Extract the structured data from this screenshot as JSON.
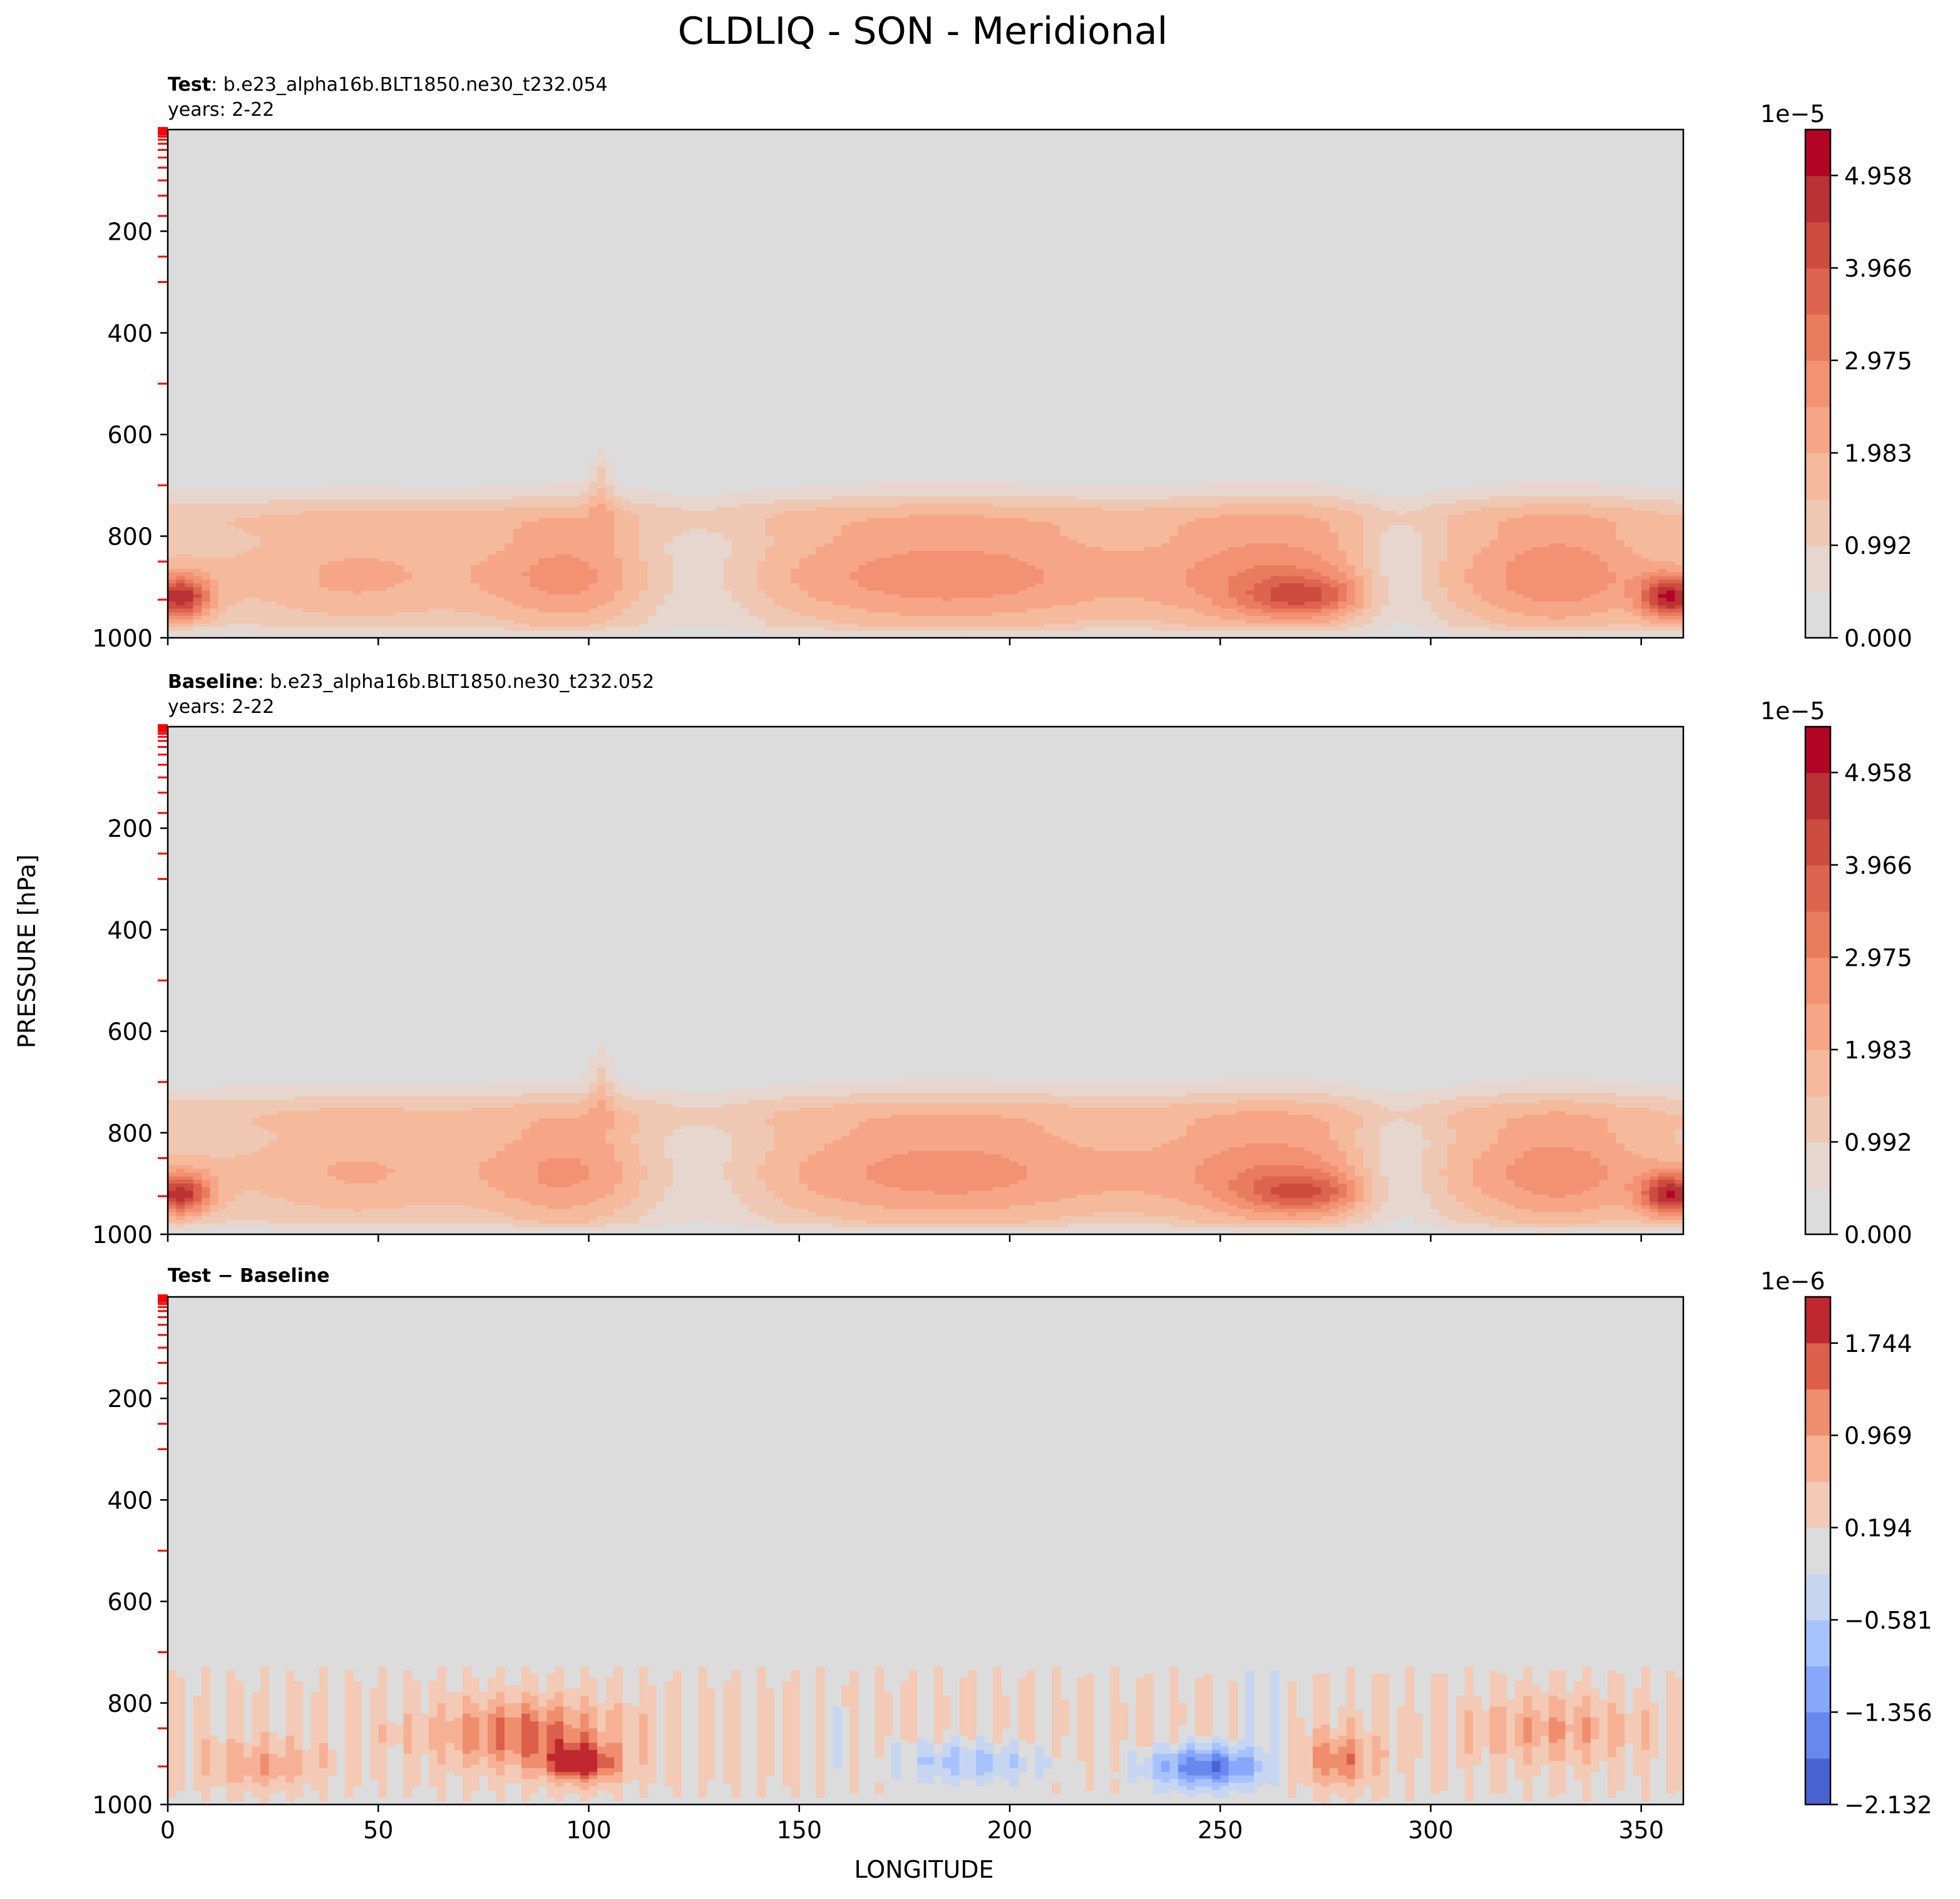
{
  "figure": {
    "title": "CLDLIQ - SON - Meridional",
    "xlabel": "LONGITUDE",
    "ylabel": "PRESSURE [hPa]"
  },
  "chart_data": [
    {
      "type": "contourf",
      "panel": "test",
      "title_bold": "Test",
      "title_rest": ": b.e23_alpha16b.BLT1850.ne30_t232.054",
      "subtitle": "years: 2-22",
      "xlim": [
        0,
        360
      ],
      "ylim": [
        1000,
        0
      ],
      "yticks": [
        200,
        400,
        600,
        800,
        1000
      ],
      "xticks": [
        0,
        50,
        100,
        150,
        200,
        250,
        300,
        350
      ],
      "show_xticklabels": false,
      "colorbar": {
        "exponent": "1e−5",
        "min": 0.0,
        "max": 5.45,
        "ticks": [
          0.0,
          0.992,
          1.983,
          2.975,
          3.966,
          4.958
        ],
        "tick_labels": [
          "0.000",
          "0.992",
          "1.983",
          "2.975",
          "3.966",
          "4.958"
        ],
        "levels": 11,
        "colors": [
          "#dddcdc",
          "#e6d6cd",
          "#efc8b4",
          "#f5b99c",
          "#f6a686",
          "#f29272",
          "#e97b5f",
          "#dd644e",
          "#cd4b3f",
          "#ba3234",
          "#b40426"
        ]
      },
      "field": {
        "variant": "test"
      }
    },
    {
      "type": "contourf",
      "panel": "baseline",
      "title_bold": "Baseline",
      "title_rest": ": b.e23_alpha16b.BLT1850.ne30_t232.052",
      "subtitle": "years: 2-22",
      "xlim": [
        0,
        360
      ],
      "ylim": [
        1000,
        0
      ],
      "yticks": [
        200,
        400,
        600,
        800,
        1000
      ],
      "xticks": [
        0,
        50,
        100,
        150,
        200,
        250,
        300,
        350
      ],
      "show_xticklabels": false,
      "colorbar": {
        "exponent": "1e−5",
        "min": 0.0,
        "max": 5.45,
        "ticks": [
          0.0,
          0.992,
          1.983,
          2.975,
          3.966,
          4.958
        ],
        "tick_labels": [
          "0.000",
          "0.992",
          "1.983",
          "2.975",
          "3.966",
          "4.958"
        ],
        "levels": 11,
        "colors": [
          "#dddcdc",
          "#e6d6cd",
          "#efc8b4",
          "#f5b99c",
          "#f6a686",
          "#f29272",
          "#e97b5f",
          "#dd644e",
          "#cd4b3f",
          "#ba3234",
          "#b40426"
        ]
      },
      "field": {
        "variant": "baseline"
      }
    },
    {
      "type": "contourf",
      "panel": "diff",
      "title_bold": "Test − Baseline",
      "title_rest": "",
      "subtitle": "",
      "xlim": [
        0,
        360
      ],
      "ylim": [
        1000,
        0
      ],
      "yticks": [
        200,
        400,
        600,
        800,
        1000
      ],
      "xticks": [
        0,
        50,
        100,
        150,
        200,
        250,
        300,
        350
      ],
      "xtick_labels": [
        "0",
        "50",
        "100",
        "150",
        "200",
        "250",
        "300",
        "350"
      ],
      "show_xticklabels": true,
      "colorbar": {
        "exponent": "1e−6",
        "min": -2.132,
        "max": 2.132,
        "ticks": [
          -2.132,
          -1.356,
          -0.581,
          0.194,
          0.969,
          1.744
        ],
        "tick_labels": [
          "−2.132",
          "−1.356",
          "−0.581",
          "0.194",
          "0.969",
          "1.744"
        ],
        "levels": 11,
        "colors": [
          "#4a63d3",
          "#6788ee",
          "#86a7fa",
          "#a7c3fe",
          "#c6d6f1",
          "#dcdcdc",
          "#f2cab5",
          "#f6b194",
          "#ef8e6d",
          "#dc5f4b",
          "#c0282f"
        ]
      },
      "field": {
        "variant": "diff"
      }
    }
  ]
}
